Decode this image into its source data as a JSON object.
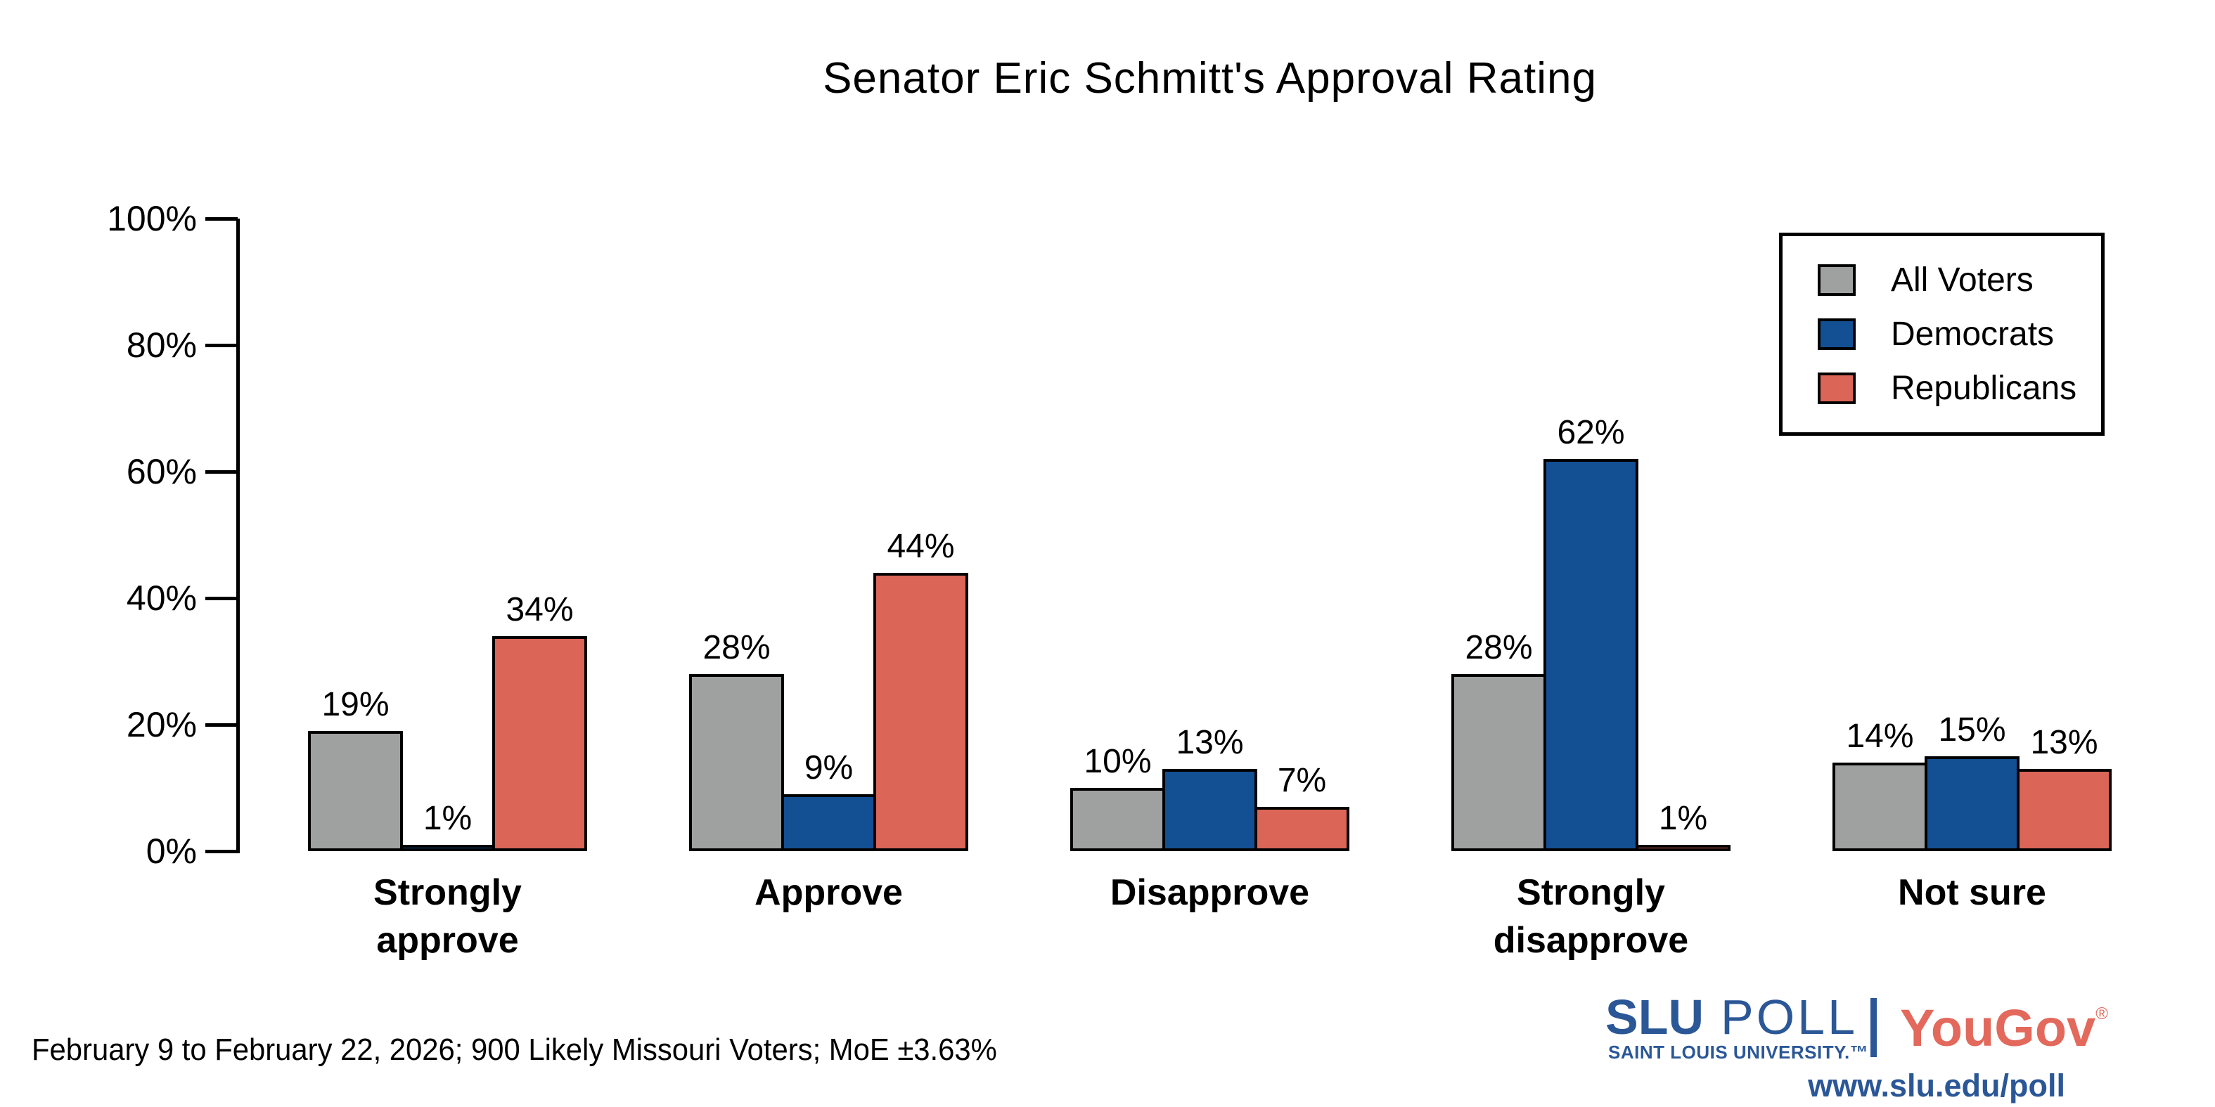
{
  "chart_data": {
    "type": "bar",
    "title": "Senator Eric Schmitt's Approval Rating",
    "categories": [
      "Strongly approve",
      "Approve",
      "Disapprove",
      "Strongly disapprove",
      "Not sure"
    ],
    "series": [
      {
        "name": "All Voters",
        "color": "#9FA0A0",
        "values": [
          19,
          28,
          10,
          28,
          14
        ]
      },
      {
        "name": "Democrats",
        "color": "#134F93",
        "values": [
          1,
          9,
          13,
          62,
          15
        ]
      },
      {
        "name": "Republicans",
        "color": "#DB6557",
        "values": [
          34,
          44,
          7,
          1,
          13
        ]
      }
    ],
    "value_suffix": "%",
    "y_axis": {
      "min": 0,
      "max": 100,
      "ticks": [
        "0%",
        "20%",
        "40%",
        "60%",
        "80%",
        "100%"
      ]
    },
    "grid": false,
    "legend_position": "top-right",
    "bar_outline_color": "#000000"
  },
  "footer": {
    "note": "February 9 to February 22, 2026; 900 Likely Missouri Voters; MoE ±3.63%"
  },
  "branding": {
    "slu": "SLU",
    "poll": "POLL",
    "institution": "SAINT LOUIS UNIVERSITY.™",
    "partner": "YouGov",
    "partner_mark": "®",
    "url": "www.slu.edu/poll",
    "slu_color": "#2B5797",
    "partner_color": "#E2695B"
  }
}
